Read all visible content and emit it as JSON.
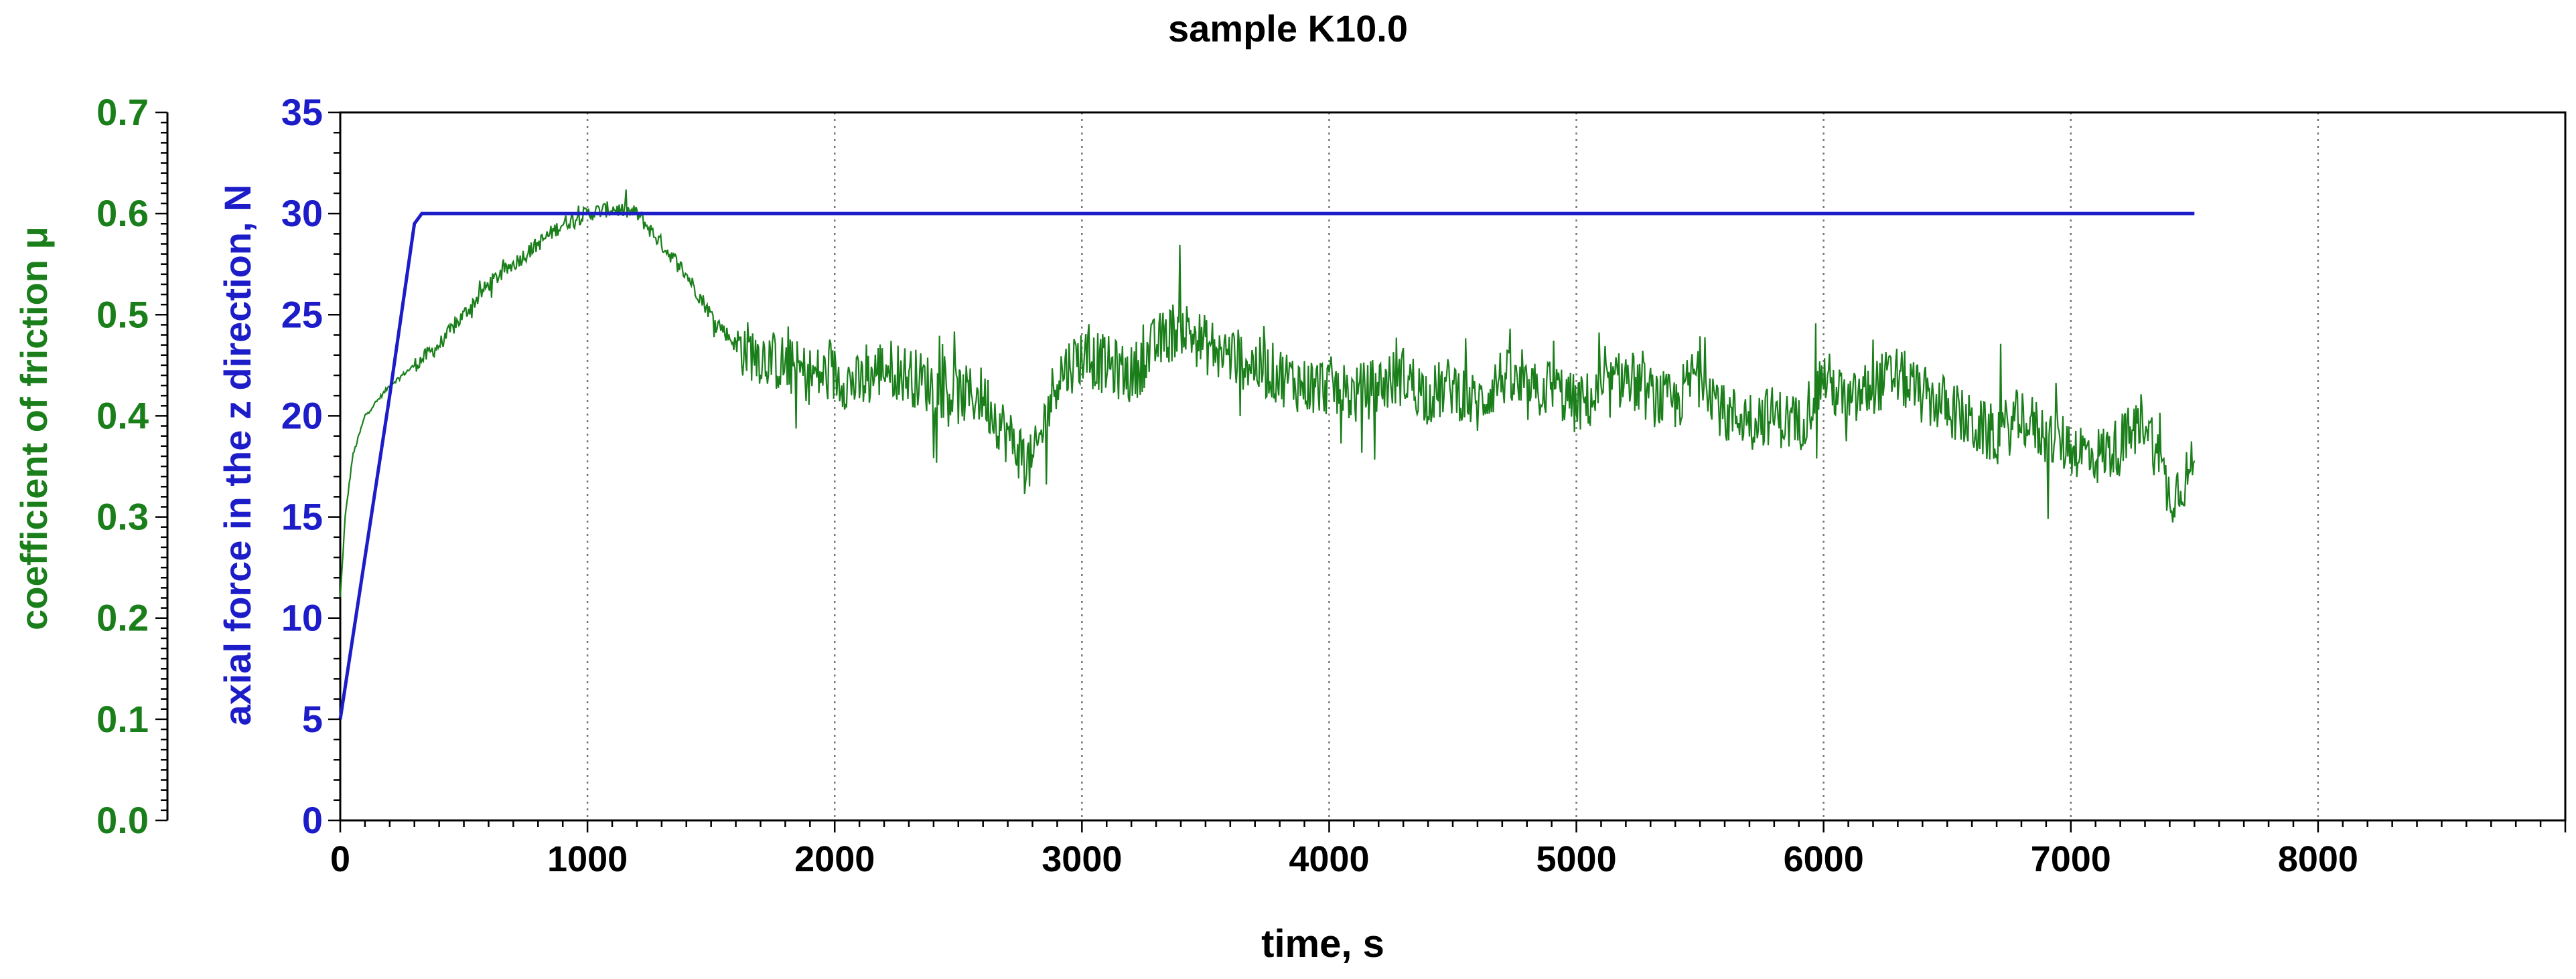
{
  "chart_data": {
    "type": "line",
    "title": "sample K10.0",
    "xlabel": "time, s",
    "ylabel_left_outer": "coefficient of friction μ",
    "ylabel_left_inner": "axial force in the z direction, N",
    "xlim": [
      0,
      9000
    ],
    "x_ticks": [
      0,
      1000,
      2000,
      3000,
      4000,
      5000,
      6000,
      7000,
      8000
    ],
    "x_tick_labels": [
      "0",
      "1000",
      "2000",
      "3000",
      "4000",
      "5000",
      "6000",
      "7000",
      "8000"
    ],
    "y_force_lim": [
      0,
      35
    ],
    "y_force_ticks": [
      0,
      5,
      10,
      15,
      20,
      25,
      30,
      35
    ],
    "y_force_tick_labels": [
      "0",
      "5",
      "10",
      "15",
      "20",
      "25",
      "30",
      "35"
    ],
    "y_mu_lim": [
      0,
      0.7
    ],
    "y_mu_ticks": [
      0.0,
      0.1,
      0.2,
      0.3,
      0.4,
      0.5,
      0.6,
      0.7
    ],
    "y_mu_tick_labels": [
      "0.0",
      "0.1",
      "0.2",
      "0.3",
      "0.4",
      "0.5",
      "0.6",
      "0.7"
    ],
    "vertical_grid": true,
    "colors": {
      "friction": "#1a7f1a",
      "force": "#1c1cc8",
      "axis": "#000000"
    },
    "series": [
      {
        "name": "axial force",
        "axis": "force",
        "color": "#1c1cc8",
        "x": [
          0,
          100,
          200,
          300,
          330,
          1000,
          2000,
          3000,
          4000,
          5000,
          6000,
          7000,
          7500
        ],
        "values": [
          5,
          13,
          21,
          29.5,
          30,
          30,
          30,
          30,
          30,
          30,
          30,
          30,
          30
        ]
      },
      {
        "name": "coefficient of friction",
        "axis": "mu",
        "color": "#1a7f1a",
        "x": [
          0,
          20,
          50,
          100,
          150,
          200,
          300,
          400,
          500,
          600,
          700,
          800,
          900,
          1000,
          1100,
          1200,
          1300,
          1400,
          1500,
          1600,
          1700,
          1800,
          1900,
          2000,
          2100,
          2200,
          2300,
          2400,
          2500,
          2600,
          2700,
          2800,
          2900,
          3000,
          3100,
          3200,
          3300,
          3400,
          3500,
          3600,
          3700,
          3800,
          3900,
          4000,
          4100,
          4200,
          4300,
          4400,
          4500,
          4600,
          4700,
          4800,
          4900,
          5000,
          5100,
          5200,
          5300,
          5400,
          5500,
          5600,
          5700,
          5800,
          5900,
          6000,
          6100,
          6200,
          6300,
          6400,
          6500,
          6600,
          6700,
          6800,
          6900,
          7000,
          7100,
          7200,
          7300,
          7400,
          7500
        ],
        "values": [
          0.22,
          0.3,
          0.36,
          0.4,
          0.415,
          0.43,
          0.45,
          0.47,
          0.5,
          0.53,
          0.55,
          0.57,
          0.59,
          0.6,
          0.605,
          0.6,
          0.57,
          0.54,
          0.5,
          0.47,
          0.46,
          0.45,
          0.44,
          0.44,
          0.43,
          0.45,
          0.44,
          0.43,
          0.42,
          0.42,
          0.38,
          0.35,
          0.44,
          0.46,
          0.45,
          0.44,
          0.47,
          0.49,
          0.47,
          0.46,
          0.45,
          0.44,
          0.43,
          0.43,
          0.42,
          0.43,
          0.44,
          0.42,
          0.43,
          0.41,
          0.44,
          0.42,
          0.43,
          0.41,
          0.42,
          0.44,
          0.42,
          0.41,
          0.45,
          0.4,
          0.4,
          0.4,
          0.39,
          0.44,
          0.41,
          0.43,
          0.44,
          0.42,
          0.41,
          0.39,
          0.38,
          0.4,
          0.38,
          0.37,
          0.36,
          0.37,
          0.4,
          0.32,
          0.35
        ],
        "noise_amplitude": 0.03
      }
    ]
  }
}
